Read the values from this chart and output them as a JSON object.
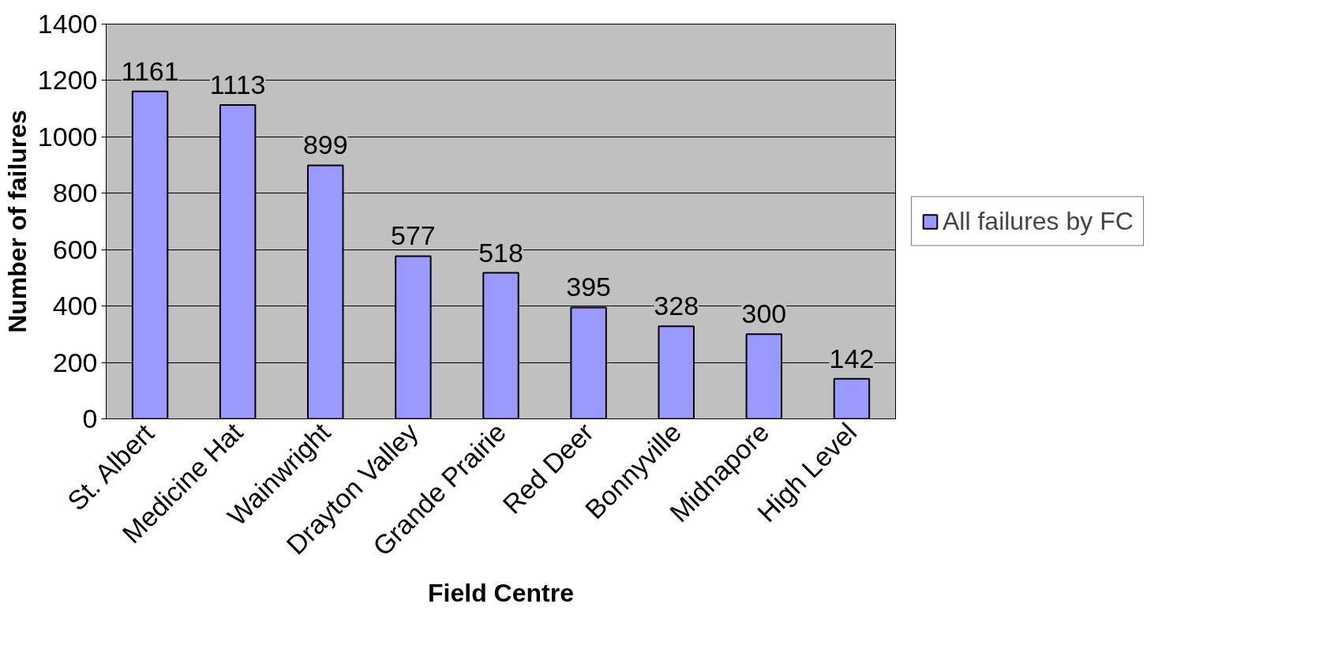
{
  "chart_data": {
    "type": "bar",
    "xlabel": "Field Centre",
    "ylabel": "Number of failures",
    "categories": [
      "St. Albert",
      "Medicine Hat",
      "Wainwright",
      "Drayton Valley",
      "Grande Prairie",
      "Red Deer",
      "Bonnyville",
      "Midnapore",
      "High Level"
    ],
    "series": [
      {
        "name": "All failures by FC",
        "color": "#9999ff",
        "values": [
          1161,
          1113,
          899,
          577,
          518,
          395,
          328,
          300,
          142
        ]
      }
    ],
    "ylim": [
      0,
      1400
    ],
    "yticks": [
      0,
      200,
      400,
      600,
      800,
      1000,
      1200,
      1400
    ],
    "grid": "y",
    "legend": "right",
    "data_labels": true
  }
}
